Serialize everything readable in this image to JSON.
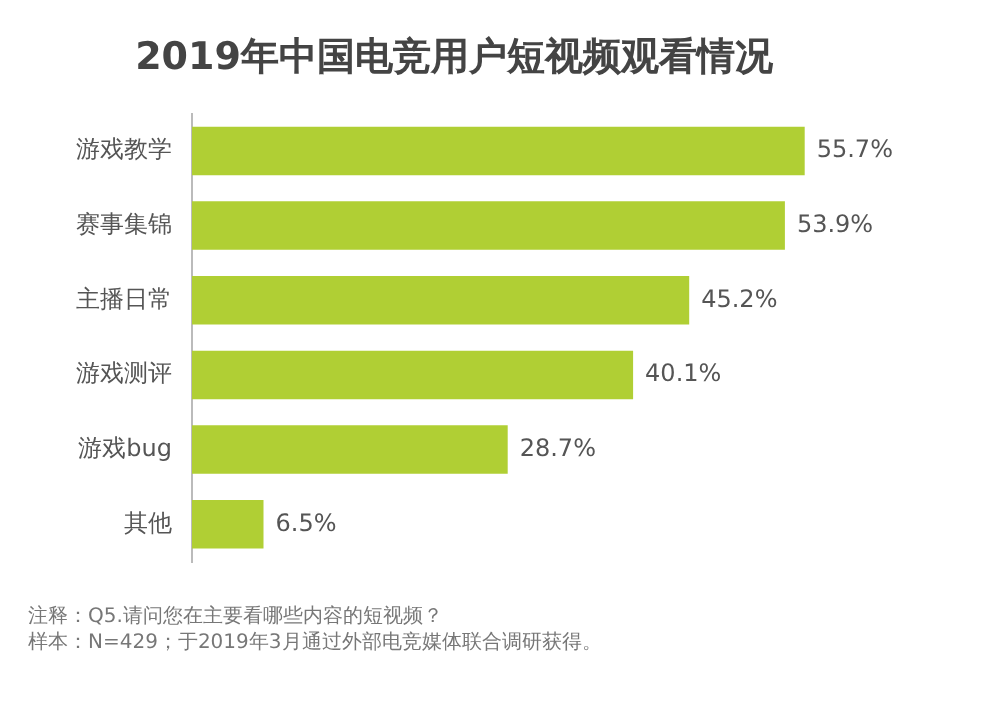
{
  "chart_data": {
    "type": "bar",
    "orientation": "horizontal",
    "title": "2019年中国电竞用户短视频观看情况",
    "categories": [
      "游戏教学",
      "赛事集锦",
      "主播日常",
      "游戏测评",
      "游戏bug",
      "其他"
    ],
    "values": [
      55.7,
      53.9,
      45.2,
      40.1,
      28.7,
      6.5
    ],
    "value_labels": [
      "55.7%",
      "53.9%",
      "45.2%",
      "40.1%",
      "28.7%",
      "6.5%"
    ],
    "color": "#b0cf34",
    "annotations": [
      "注释：Q5.请问您在主要看哪些内容的短视频？",
      "样本：N=429；于2019年3月通过外部电竞媒体联合调研获得。"
    ]
  }
}
